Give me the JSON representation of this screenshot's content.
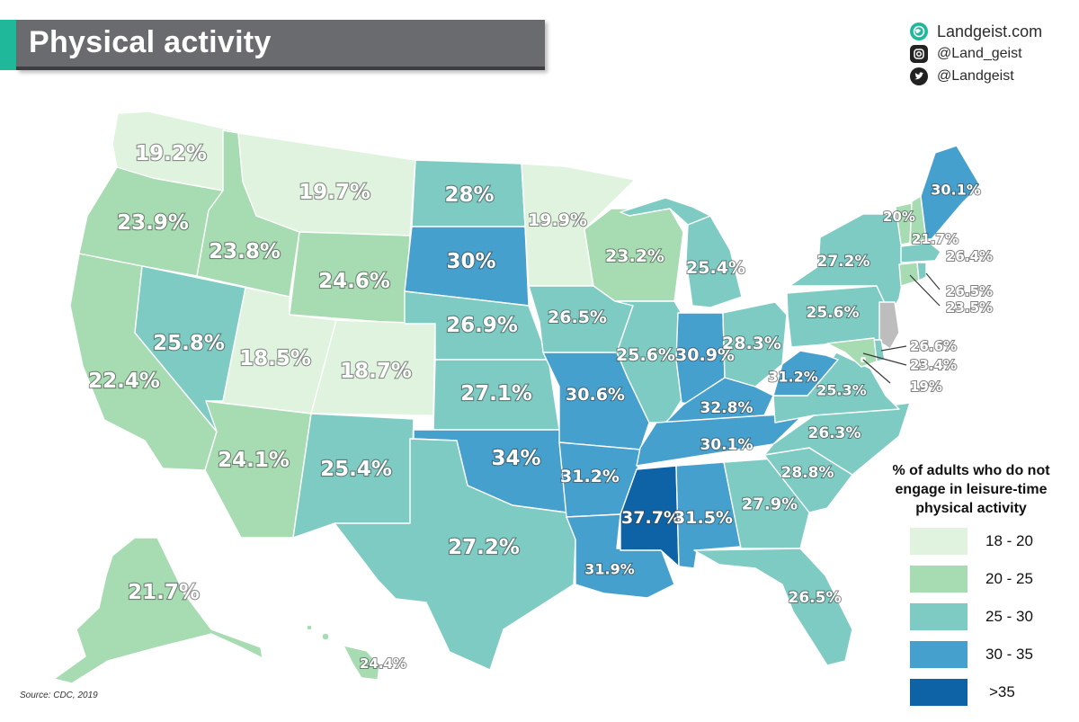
{
  "title": "Physical activity",
  "brand": {
    "site": "Landgeist.com",
    "instagram": "@Land_geist",
    "twitter": "@Landgeist"
  },
  "source": "Source: CDC, 2019",
  "legend": {
    "title_lines": [
      "% of adults who do not",
      "engage in leisure-time",
      "physical activity"
    ],
    "items": [
      {
        "label": "18 - 20",
        "color": "#dff3df"
      },
      {
        "label": "20 - 25",
        "color": "#a7dbb2"
      },
      {
        "label": "25 - 30",
        "color": "#7ecbc3"
      },
      {
        "label": "30 - 35",
        "color": "#46a0cd"
      },
      {
        "label": ">35",
        "color": "#0e63a7"
      }
    ]
  },
  "colors": {
    "no_data": "#bdbdbd",
    "title_bar": "#6a6b6e",
    "accent": "#1fb89a"
  },
  "states": {
    "WA": "19.2%",
    "OR": "23.9%",
    "CA": "22.4%",
    "ID": "23.8%",
    "NV": "25.8%",
    "MT": "19.7%",
    "WY": "24.6%",
    "UT": "18.5%",
    "CO": "18.7%",
    "AZ": "24.1%",
    "NM": "25.4%",
    "ND": "28%",
    "SD": "30%",
    "NE": "26.9%",
    "KS": "27.1%",
    "OK": "34%",
    "TX": "27.2%",
    "MN": "19.9%",
    "IA": "26.5%",
    "MO": "30.6%",
    "AR": "31.2%",
    "LA": "31.9%",
    "WI": "23.2%",
    "IL": "25.6%",
    "MI": "25.4%",
    "IN": "30.9%",
    "OH": "28.3%",
    "KY": "32.8%",
    "TN": "30.1%",
    "MS": "37.7%",
    "AL": "31.5%",
    "GA": "27.9%",
    "FL": "26.5%",
    "SC": "28.8%",
    "NC": "26.3%",
    "VA": "25.3%",
    "WV": "31.2%",
    "PA": "25.6%",
    "NY": "27.2%",
    "ME": "30.1%",
    "VT": "20%",
    "NH": "21.7%",
    "MA": "26.4%",
    "RI": "26.5%",
    "CT": "23.5%",
    "NJ": "",
    "DE": "26.6%",
    "MD": "23.4%",
    "DC": "19%",
    "AK": "21.7%",
    "HI": "24.4%"
  }
}
